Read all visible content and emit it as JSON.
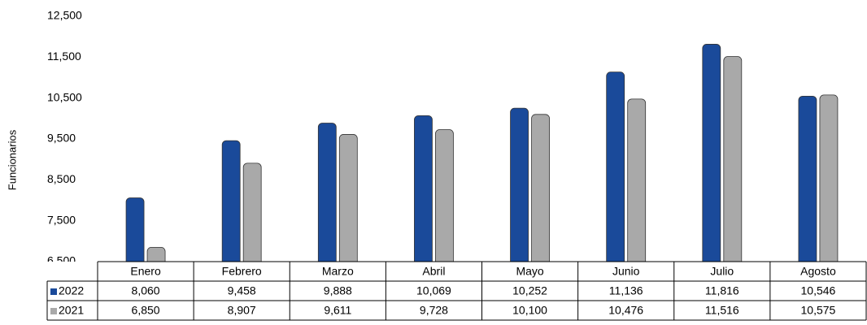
{
  "chart_data": {
    "type": "bar",
    "y_label": "Funcionarios",
    "categories": [
      "Enero",
      "Febrero",
      "Marzo",
      "Abril",
      "Mayo",
      "Junio",
      "Julio",
      "Agosto"
    ],
    "series": [
      {
        "name": "2022",
        "color": "#1a4a9a",
        "values": [
          8060,
          9458,
          9888,
          10069,
          10252,
          11136,
          11816,
          10546
        ],
        "value_labels": [
          "8,060",
          "9,458",
          "9,888",
          "10,069",
          "10,252",
          "11,136",
          "11,816",
          "10,546"
        ]
      },
      {
        "name": "2021",
        "color": "#a9a9a9",
        "values": [
          6850,
          8907,
          9611,
          9728,
          10100,
          10476,
          11516,
          10575
        ],
        "value_labels": [
          "6,850",
          "8,907",
          "9,611",
          "9,728",
          "10,100",
          "10,476",
          "11,516",
          "10,575"
        ]
      }
    ],
    "ylim": [
      6500,
      12500
    ],
    "yticks": [
      {
        "value": 6500,
        "label": "6,500"
      },
      {
        "value": 7500,
        "label": "7,500"
      },
      {
        "value": 8500,
        "label": "8,500"
      },
      {
        "value": 9500,
        "label": "9,500"
      },
      {
        "value": 10500,
        "label": "10,500"
      },
      {
        "value": 11500,
        "label": "11,500"
      },
      {
        "value": 12500,
        "label": "12,500"
      }
    ],
    "grid": false,
    "data_table": true
  }
}
